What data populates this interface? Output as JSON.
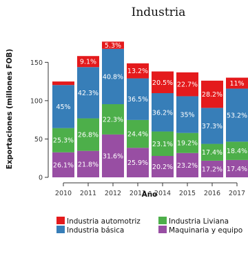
{
  "chart_data": {
    "type": "bar",
    "stacked": true,
    "title": "Industria",
    "xlabel": "Año",
    "ylabel": "Exportaciones (millones FOB)",
    "ylim": [
      0,
      180
    ],
    "yticks": [
      0,
      50,
      100,
      150
    ],
    "categories": [
      "2010",
      "2011",
      "2012",
      "2013",
      "2014",
      "2015",
      "2016",
      "2017"
    ],
    "grid": false,
    "legend_position": "bottom",
    "series": [
      {
        "name": "Maquinaria y equipo",
        "color": "#984ea3",
        "values": [
          32.6,
          34.5,
          55.9,
          38.5,
          27.9,
          31.7,
          21.7,
          22.6
        ],
        "labels": [
          "26.1%",
          "21.8%",
          "31.6%",
          "25.9%",
          "20.2%",
          "23.2%",
          "17.2%",
          "17.4%"
        ]
      },
      {
        "name": "Industria Liviana",
        "color": "#4daf4a",
        "values": [
          31.6,
          42.4,
          39.5,
          36.3,
          31.9,
          26.2,
          21.9,
          23.9
        ],
        "labels": [
          "25.3%",
          "26.8%",
          "22.3%",
          "24.4%",
          "23.1%",
          "19.2%",
          "17.4%",
          "18.4%"
        ]
      },
      {
        "name": "Industria básica",
        "color": "#377eb8",
        "values": [
          56.2,
          66.9,
          72.2,
          54.3,
          50.0,
          47.9,
          47.0,
          69.2
        ],
        "labels": [
          "45%",
          "42.3%",
          "40.8%",
          "36.5%",
          "36.2%",
          "35%",
          "37.3%",
          "53.2%"
        ]
      },
      {
        "name": "Industria automotriz",
        "color": "#e41a1c",
        "values": [
          4.6,
          14.4,
          9.4,
          19.6,
          28.3,
          31.1,
          35.5,
          14.3
        ],
        "labels": [
          "",
          "9.1%",
          "5.3%",
          "13.2%",
          "20.5%",
          "22.7%",
          "28.2%",
          "11%"
        ]
      }
    ],
    "legend": [
      {
        "name": "Industria automotriz",
        "color": "#e41a1c"
      },
      {
        "name": "Industria Liviana",
        "color": "#4daf4a"
      },
      {
        "name": "Industria básica",
        "color": "#377eb8"
      },
      {
        "name": "Maquinaria y equipo",
        "color": "#984ea3"
      }
    ]
  }
}
